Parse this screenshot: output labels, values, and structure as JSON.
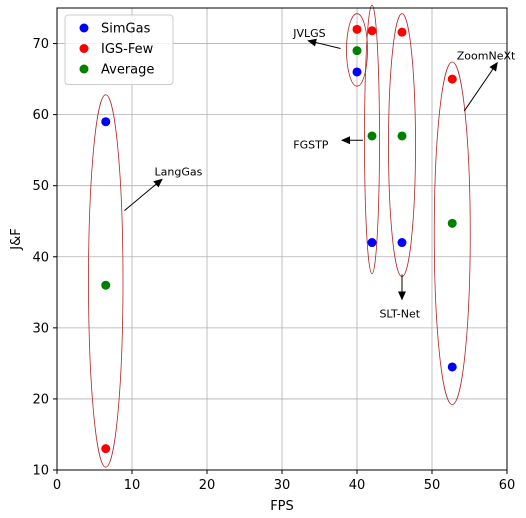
{
  "chart_data": {
    "type": "scatter",
    "xlabel": "FPS",
    "ylabel": "J&F",
    "xlim": [
      0,
      60
    ],
    "ylim": [
      10,
      75
    ],
    "xticks": [
      0,
      10,
      20,
      30,
      40,
      50,
      60
    ],
    "yticks": [
      10,
      20,
      30,
      40,
      50,
      60,
      70
    ],
    "grid": true,
    "legend_position": "top-left",
    "colors": {
      "SimGas": "#0000ff",
      "IGS-Few": "#ff0000",
      "Average": "#008000",
      "ellipse": "#b22222"
    },
    "series": [
      {
        "name": "SimGas",
        "points": [
          [
            6.5,
            59
          ],
          [
            40,
            66
          ],
          [
            42,
            42
          ],
          [
            46,
            42
          ],
          [
            52.7,
            24.5
          ]
        ]
      },
      {
        "name": "IGS-Few",
        "points": [
          [
            6.5,
            13
          ],
          [
            40,
            72
          ],
          [
            42,
            71.8
          ],
          [
            46,
            71.6
          ],
          [
            52.7,
            65
          ]
        ]
      },
      {
        "name": "Average",
        "points": [
          [
            6.5,
            36
          ],
          [
            40,
            69
          ],
          [
            42,
            57
          ],
          [
            46,
            57
          ],
          [
            52.7,
            44.7
          ]
        ]
      }
    ],
    "groups": [
      {
        "x": 6.5,
        "y": 36.6,
        "rx": 2.3,
        "ry": 26.2
      },
      {
        "x": 40,
        "y": 69.1,
        "rx": 1.4,
        "ry": 5.1
      },
      {
        "x": 42,
        "y": 56.5,
        "rx": 1.0,
        "ry": 18.9
      },
      {
        "x": 46,
        "y": 55.7,
        "rx": 1.8,
        "ry": 18.5
      },
      {
        "x": 52.7,
        "y": 43.3,
        "rx": 2.4,
        "ry": 24.1
      }
    ],
    "annotations": [
      {
        "text": "LangGas",
        "anchor": "start",
        "text_xy": [
          13,
          52
        ],
        "arrow_from": [
          9,
          46.5
        ],
        "arrow_to": [
          14,
          50.9
        ]
      },
      {
        "text": "JVLGS",
        "anchor": "start",
        "text_xy": [
          31.5,
          71.5
        ],
        "arrow_from": [
          37.8,
          69.3
        ],
        "arrow_to": [
          33.5,
          70.4
        ]
      },
      {
        "text": "FGSTP",
        "anchor": "start",
        "text_xy": [
          31.5,
          55.8
        ],
        "arrow_from": [
          40.8,
          56.4
        ],
        "arrow_to": [
          38,
          56.4
        ]
      },
      {
        "text": "SLT-Net",
        "anchor": "middle",
        "text_xy": [
          45.7,
          32
        ],
        "arrow_from": [
          46,
          37.5
        ],
        "arrow_to": [
          46,
          34
        ]
      },
      {
        "text": "ZoomNeXt",
        "anchor": "start",
        "text_xy": [
          53.3,
          68.3
        ],
        "arrow_from": [
          54.3,
          60.5
        ],
        "arrow_to": [
          58.7,
          67.3
        ]
      }
    ]
  }
}
